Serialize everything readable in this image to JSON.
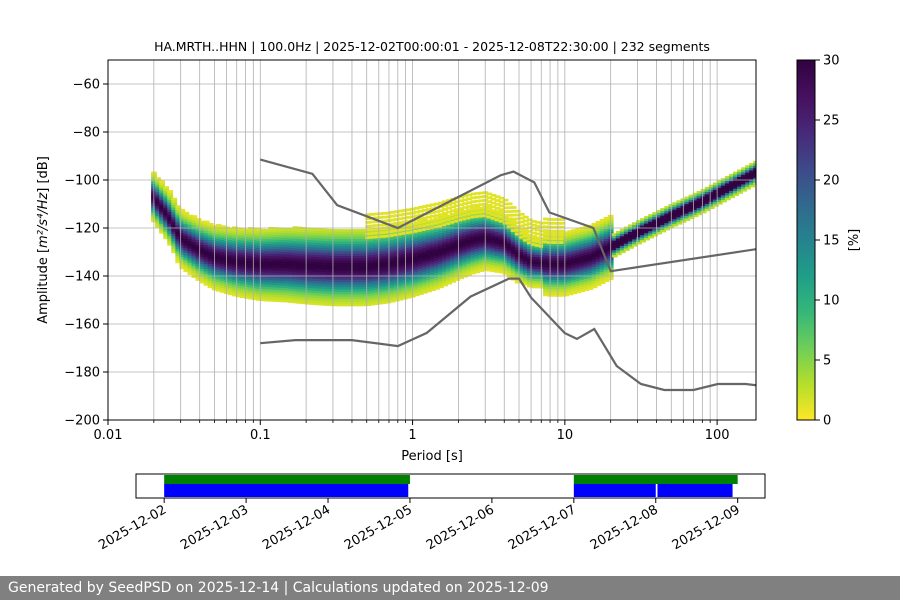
{
  "footer": {
    "text": "Generated by SeedPSD on 2025-12-14 | Calculations updated on 2025-12-09"
  },
  "colors": {
    "low_noise_model": "#666666",
    "high_noise_model": "#666666",
    "coverage_top": "#008000",
    "coverage_bottom": "#0000ff"
  },
  "chart_data": [
    {
      "type": "heatmap",
      "title": "HA.MRTH..HHN | 100.0Hz | 2025-12-02T00:00:01 - 2025-12-08T22:30:00 | 232 segments",
      "xlabel": "Period [s]",
      "ylabel_prefix": "Amplitude [",
      "ylabel_math": "m²/s⁴/Hz",
      "ylabel_suffix": "] [dB]",
      "xscale": "log",
      "xlim": [
        0.01,
        180
      ],
      "ylim": [
        -200,
        -50
      ],
      "x_ticks": [
        0.01,
        0.1,
        1,
        10,
        100
      ],
      "x_tick_labels": [
        "0.01",
        "0.1",
        "1",
        "10",
        "100"
      ],
      "y_ticks": [
        -200,
        -180,
        -160,
        -140,
        -120,
        -100,
        -80,
        -60
      ],
      "y_tick_labels": [
        "−200",
        "−180",
        "−160",
        "−140",
        "−120",
        "−100",
        "−80",
        "−60"
      ],
      "grid": true,
      "colorbar": {
        "label": "[%]",
        "range": [
          0,
          30
        ],
        "ticks": [
          0,
          5,
          10,
          15,
          20,
          25,
          30
        ],
        "tick_labels": [
          "0",
          "5",
          "10",
          "15",
          "20",
          "25",
          "30"
        ],
        "colormap": "viridis_r"
      },
      "psd_mode_curve": {
        "period": [
          0.02,
          0.025,
          0.03,
          0.04,
          0.05,
          0.07,
          0.1,
          0.15,
          0.2,
          0.3,
          0.5,
          0.7,
          1.0,
          1.5,
          2.0,
          2.5,
          3.0,
          4.0,
          5.0,
          6.0,
          8.0,
          10,
          15,
          20,
          30,
          50,
          80,
          120,
          180
        ],
        "db": [
          -107,
          -115,
          -124,
          -129,
          -132,
          -134,
          -135,
          -135,
          -135.5,
          -136,
          -136,
          -135,
          -133,
          -130,
          -127,
          -125,
          -124,
          -126,
          -131,
          -134,
          -135,
          -135,
          -132,
          -128,
          -122,
          -115,
          -109,
          -103,
          -97
        ]
      },
      "noise_models": [
        {
          "name": "high",
          "period": [
            0.1,
            0.22,
            0.32,
            0.8,
            3.8,
            4.6,
            6.3,
            7.9,
            15.4,
            20,
            354.8
          ],
          "db": [
            -91.5,
            -97.4,
            -110.5,
            -120,
            -98,
            -96.5,
            -101,
            -113.5,
            -120,
            -138,
            -126
          ]
        },
        {
          "name": "low",
          "period": [
            0.1,
            0.17,
            0.4,
            0.8,
            1.24,
            2.4,
            4.3,
            5.0,
            6.0,
            10.0,
            12.0,
            15.6,
            21.9,
            31.6,
            45,
            70,
            101,
            154,
            328
          ],
          "db": [
            -168,
            -166.7,
            -166.7,
            -169.2,
            -163.7,
            -148.6,
            -141.1,
            -141.1,
            -149,
            -163.8,
            -166.2,
            -162.1,
            -177.5,
            -185,
            -187.5,
            -187.5,
            -185,
            -185,
            -187.5
          ]
        }
      ]
    },
    {
      "type": "timeline",
      "x_tick_labels": [
        "2025-12-02",
        "2025-12-03",
        "2025-12-04",
        "2025-12-05",
        "2025-12-06",
        "2025-12-07",
        "2025-12-08",
        "2025-12-09"
      ],
      "xlim": [
        "2025-12-01T15:45",
        "2025-12-09T08:00"
      ],
      "data_availability": [
        {
          "start": "2025-12-02T00:00",
          "end": "2025-12-05T00:00"
        },
        {
          "start": "2025-12-07T00:00",
          "end": "2025-12-09T00:00"
        }
      ],
      "psd_segments": [
        {
          "start": "2025-12-02T00:00",
          "end": "2025-12-04T23:30"
        },
        {
          "start": "2025-12-07T00:00",
          "end": "2025-12-08T00:00"
        },
        {
          "start": "2025-12-08T00:30",
          "end": "2025-12-08T22:30"
        }
      ]
    }
  ]
}
